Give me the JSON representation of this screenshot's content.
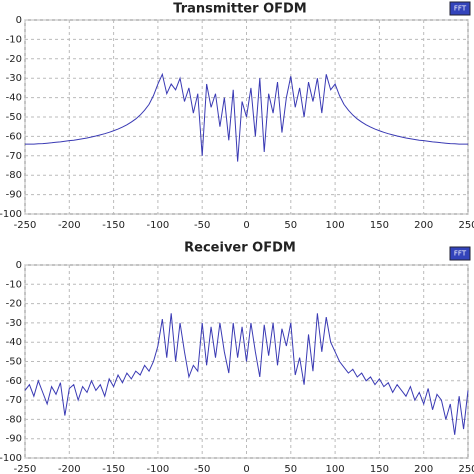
{
  "chart_data": [
    {
      "type": "line",
      "title": "Transmitter OFDM",
      "button_label": "FFT",
      "x": [
        -250,
        -245,
        -240,
        -235,
        -230,
        -225,
        -220,
        -215,
        -210,
        -205,
        -200,
        -195,
        -190,
        -185,
        -180,
        -175,
        -170,
        -165,
        -160,
        -155,
        -150,
        -145,
        -140,
        -135,
        -130,
        -125,
        -120,
        -115,
        -110,
        -105,
        -100,
        -95,
        -90,
        -85,
        -80,
        -75,
        -70,
        -65,
        -60,
        -55,
        -50,
        -45,
        -40,
        -35,
        -30,
        -25,
        -20,
        -15,
        -10,
        -5,
        0,
        5,
        10,
        15,
        20,
        25,
        30,
        35,
        40,
        45,
        50,
        55,
        60,
        65,
        70,
        75,
        80,
        85,
        90,
        95,
        100,
        105,
        110,
        115,
        120,
        125,
        130,
        135,
        140,
        145,
        150,
        155,
        160,
        165,
        170,
        175,
        180,
        185,
        190,
        195,
        200,
        205,
        210,
        215,
        220,
        225,
        230,
        235,
        240,
        245,
        250
      ],
      "series": [
        {
          "color": "#3a3ab4",
          "values": [
            -64,
            -64,
            -64,
            -63.8,
            -63.7,
            -63.5,
            -63.3,
            -63,
            -62.8,
            -62.5,
            -62.2,
            -62,
            -61.6,
            -61.2,
            -60.8,
            -60.3,
            -59.8,
            -59.2,
            -58.6,
            -57.9,
            -57.1,
            -56.2,
            -55.2,
            -54,
            -52.6,
            -51,
            -49,
            -46.5,
            -43.5,
            -39,
            -33,
            -28,
            -38,
            -33,
            -36,
            -30,
            -42,
            -35,
            -48,
            -38,
            -70,
            -33,
            -45,
            -38,
            -55,
            -40,
            -62,
            -36,
            -73,
            -42,
            -50,
            -35,
            -60,
            -30,
            -68,
            -38,
            -48,
            -32,
            -58,
            -40,
            -29,
            -45,
            -35,
            -50,
            -32,
            -42,
            -30,
            -48,
            -28,
            -36,
            -33,
            -39,
            -43.5,
            -46.5,
            -49,
            -51,
            -52.6,
            -54,
            -55.2,
            -56.2,
            -57.1,
            -57.9,
            -58.6,
            -59.2,
            -59.8,
            -60.3,
            -60.8,
            -61.2,
            -61.6,
            -62,
            -62.2,
            -62.5,
            -62.8,
            -63,
            -63.3,
            -63.5,
            -63.7,
            -63.8,
            -64,
            -64,
            -64
          ]
        }
      ],
      "xlim": [
        -250,
        250
      ],
      "xticks": [
        -250,
        -200,
        -150,
        -100,
        -50,
        0,
        50,
        100,
        150,
        200,
        250
      ],
      "ylim": [
        -100,
        0
      ],
      "yticks": [
        0,
        -10,
        -20,
        -30,
        -40,
        -50,
        -60,
        -70,
        -80,
        -90,
        -100
      ],
      "grid": true
    },
    {
      "type": "line",
      "title": "Receiver OFDM",
      "button_label": "FFT",
      "x": [
        -250,
        -245,
        -240,
        -235,
        -230,
        -225,
        -220,
        -215,
        -210,
        -205,
        -200,
        -195,
        -190,
        -185,
        -180,
        -175,
        -170,
        -165,
        -160,
        -155,
        -150,
        -145,
        -140,
        -135,
        -130,
        -125,
        -120,
        -115,
        -110,
        -105,
        -100,
        -95,
        -90,
        -85,
        -80,
        -75,
        -70,
        -65,
        -60,
        -55,
        -50,
        -45,
        -40,
        -35,
        -30,
        -25,
        -20,
        -15,
        -10,
        -5,
        0,
        5,
        10,
        15,
        20,
        25,
        30,
        35,
        40,
        45,
        50,
        55,
        60,
        65,
        70,
        75,
        80,
        85,
        90,
        95,
        100,
        105,
        110,
        115,
        120,
        125,
        130,
        135,
        140,
        145,
        150,
        155,
        160,
        165,
        170,
        175,
        180,
        185,
        190,
        195,
        200,
        205,
        210,
        215,
        220,
        225,
        230,
        235,
        240,
        245,
        250
      ],
      "series": [
        {
          "color": "#3a3ab4",
          "values": [
            -65,
            -62,
            -68,
            -60,
            -66,
            -72,
            -63,
            -67,
            -61,
            -78,
            -64,
            -62,
            -70,
            -63,
            -66,
            -60,
            -65,
            -62,
            -68,
            -59,
            -63,
            -57,
            -61,
            -56,
            -59,
            -55,
            -57,
            -52,
            -55,
            -50,
            -42,
            -28,
            -48,
            -25,
            -50,
            -30,
            -45,
            -58,
            -52,
            -55,
            -30,
            -52,
            -32,
            -48,
            -30,
            -45,
            -56,
            -30,
            -48,
            -32,
            -50,
            -30,
            -45,
            -58,
            -31,
            -47,
            -30,
            -52,
            -33,
            -42,
            -30,
            -57,
            -48,
            -62,
            -36,
            -55,
            -25,
            -45,
            -27,
            -40,
            -45,
            -50,
            -53,
            -56,
            -54,
            -58,
            -56,
            -60,
            -58,
            -62,
            -59,
            -63,
            -61,
            -66,
            -62,
            -65,
            -68,
            -63,
            -70,
            -66,
            -72,
            -64,
            -75,
            -67,
            -70,
            -80,
            -72,
            -88,
            -68,
            -85,
            -65
          ]
        }
      ],
      "xlim": [
        -250,
        250
      ],
      "xticks": [
        -250,
        -200,
        -150,
        -100,
        -50,
        0,
        50,
        100,
        150,
        200,
        250
      ],
      "ylim": [
        -100,
        0
      ],
      "yticks": [
        0,
        -10,
        -20,
        -30,
        -40,
        -50,
        -60,
        -70,
        -80,
        -90,
        -100
      ],
      "grid": true
    }
  ]
}
